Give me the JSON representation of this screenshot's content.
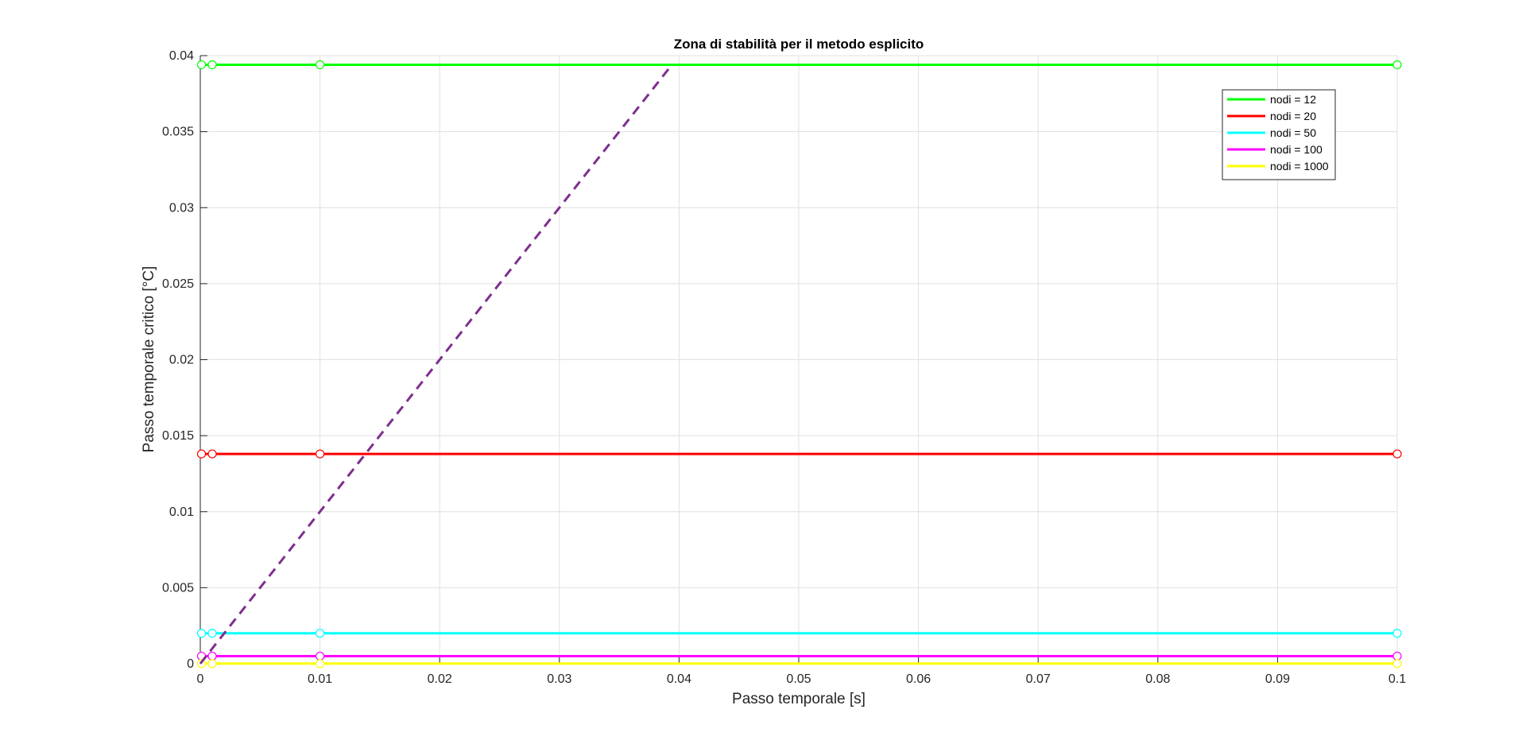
{
  "chart_data": {
    "type": "line",
    "title": "Zona di stabilità per il metodo esplicito",
    "xlabel": "Passo temporale [s]",
    "ylabel": "Passo temporale critico [°C]",
    "xlim": [
      0,
      0.1
    ],
    "ylim": [
      0,
      0.04
    ],
    "xticks": [
      0,
      0.01,
      0.02,
      0.03,
      0.04,
      0.05,
      0.06,
      0.07,
      0.08,
      0.09,
      0.1
    ],
    "xtick_labels": [
      "0",
      "0.01",
      "0.02",
      "0.03",
      "0.04",
      "0.05",
      "0.06",
      "0.07",
      "0.08",
      "0.09",
      "0.1"
    ],
    "yticks": [
      0,
      0.005,
      0.01,
      0.015,
      0.02,
      0.025,
      0.03,
      0.035,
      0.04
    ],
    "ytick_labels": [
      "0",
      "0.005",
      "0.01",
      "0.015",
      "0.02",
      "0.025",
      "0.03",
      "0.035",
      "0.04"
    ],
    "grid": true,
    "legend_position": "top-right",
    "x": [
      0.0001,
      0.001,
      0.01,
      0.1
    ],
    "series": [
      {
        "name": "nodi = 12",
        "color": "#00ff00",
        "values": [
          0.0394,
          0.0394,
          0.0394,
          0.0394
        ]
      },
      {
        "name": "nodi = 20",
        "color": "#ff0000",
        "values": [
          0.0138,
          0.0138,
          0.0138,
          0.0138
        ]
      },
      {
        "name": "nodi = 50",
        "color": "#00ffff",
        "values": [
          0.002,
          0.002,
          0.002,
          0.002
        ]
      },
      {
        "name": "nodi = 100",
        "color": "#ff00ff",
        "values": [
          0.0005,
          0.0005,
          0.0005,
          0.0005
        ]
      },
      {
        "name": "nodi = 1000",
        "color": "#ffff00",
        "values": [
          5e-06,
          5e-06,
          5e-06,
          5e-06
        ]
      }
    ],
    "reference_line": {
      "style": "dashed",
      "color": "#7e2f8e",
      "x": [
        0,
        0.0394
      ],
      "y": [
        0,
        0.0394
      ]
    }
  }
}
